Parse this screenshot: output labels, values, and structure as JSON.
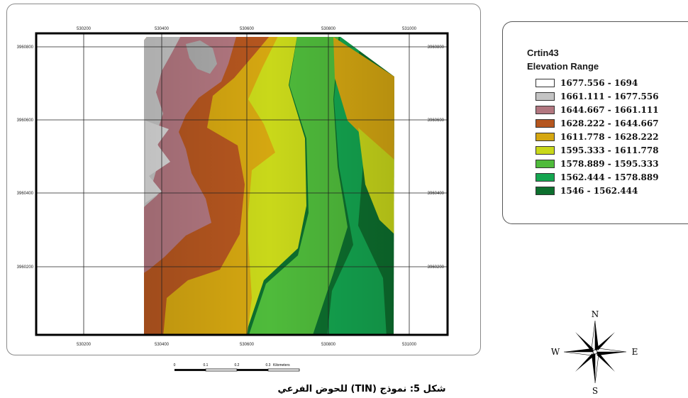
{
  "map": {
    "x_ticks": [
      "530200",
      "530400",
      "530600",
      "530800",
      "531000"
    ],
    "y_ticks": [
      "3960800",
      "3960600",
      "3960400",
      "3960200"
    ],
    "scale_bar": {
      "labels": [
        "0",
        "0.1",
        "0.2",
        "0.3"
      ],
      "unit": "Kilometers"
    }
  },
  "legend": {
    "layer_name": "Crtin43",
    "title": "Elevation Range",
    "items": [
      {
        "label": "1677.556 - 1694",
        "color": "#ffffff"
      },
      {
        "label": "1661.111 - 1677.556",
        "color": "#c4c4c4"
      },
      {
        "label": "1644.667 - 1661.111",
        "color": "#b27780"
      },
      {
        "label": "1628.222 - 1644.667",
        "color": "#b5561f"
      },
      {
        "label": "1611.778 - 1628.222",
        "color": "#d5a711"
      },
      {
        "label": "1595.333 - 1611.778",
        "color": "#c9d81a"
      },
      {
        "label": "1578.889 - 1595.333",
        "color": "#4fbb3b"
      },
      {
        "label": "1562.444 - 1578.889",
        "color": "#14a650"
      },
      {
        "label": "1546 - 1562.444",
        "color": "#0d6f2e"
      }
    ]
  },
  "compass": {
    "north": "N",
    "south": "S",
    "east": "E",
    "west": "W"
  },
  "caption": "شكل 5: نموذج (TIN) للحوض الفرعي"
}
